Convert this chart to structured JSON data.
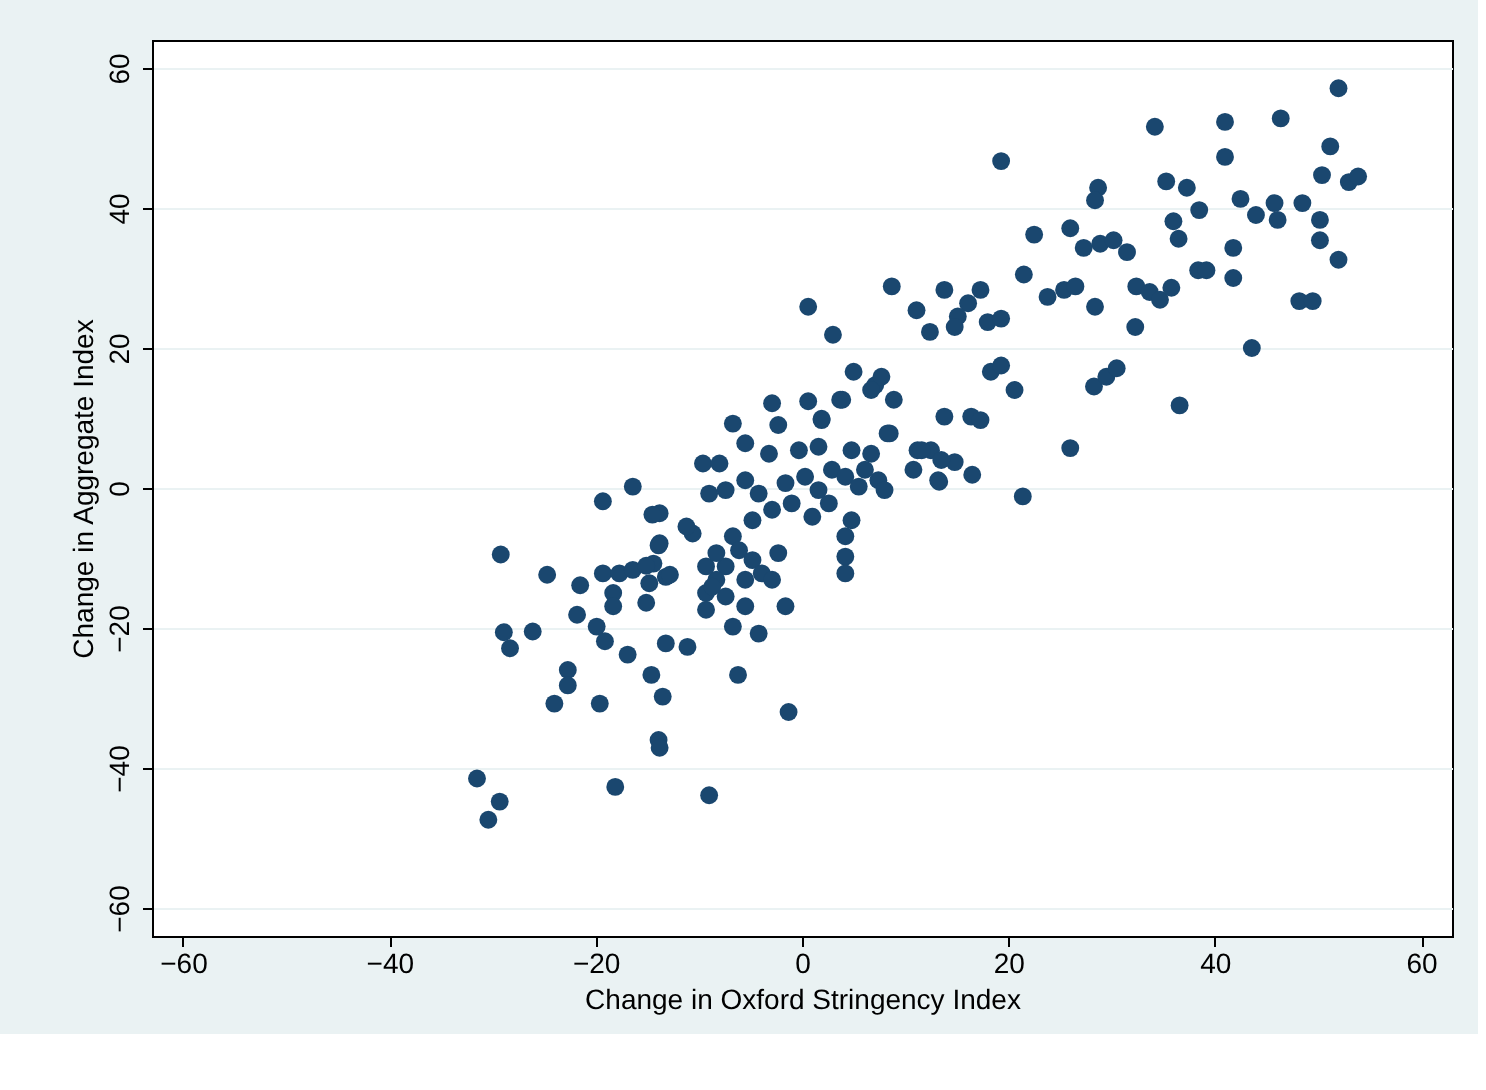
{
  "chart_data": {
    "type": "scatter",
    "xlabel": "Change in Oxford Stringency Index",
    "ylabel": "Change in Aggregate Index",
    "xlim": [
      -63,
      63
    ],
    "ylim": [
      -64,
      64
    ],
    "xticks": [
      -60,
      -40,
      -20,
      0,
      20,
      40,
      60
    ],
    "yticks": [
      -60,
      -40,
      -20,
      0,
      20,
      40,
      60
    ],
    "grid": "y",
    "marker": "circle",
    "series": [
      {
        "color": "#1a476f",
        "x": [
          52.0,
          34.2,
          41.0,
          46.4,
          41.0,
          19.3,
          51.2,
          50.4,
          53.0,
          53.9,
          35.3,
          37.3,
          38.5,
          28.7,
          28.4,
          42.5,
          44.0,
          45.8,
          46.1,
          48.5,
          50.2,
          50.2,
          52.0,
          36.0,
          36.5,
          41.8,
          41.8,
          38.4,
          39.2,
          48.2,
          49.5,
          43.6,
          36.6,
          22.5,
          26.0,
          27.3,
          28.9,
          30.2,
          31.5,
          21.5,
          23.8,
          25.4,
          26.5,
          28.4,
          32.4,
          33.7,
          34.7,
          35.8,
          32.3,
          8.7,
          13.8,
          17.3,
          16.1,
          15.1,
          14.8,
          11.1,
          12.4,
          18.0,
          19.3,
          0.6,
          3.0,
          18.3,
          19.3,
          20.6,
          28.3,
          29.5,
          30.5,
          5.0,
          7.1,
          7.7,
          8.9,
          0.6,
          3.7,
          1.9,
          13.8,
          16.4,
          17.3,
          8.5,
          26.0,
          11.2,
          12.5,
          10.8,
          14.8,
          13.3,
          16.5,
          21.4,
          6.7,
          -2.9,
          3.9,
          1.9,
          -2.3,
          -6.7,
          8.3,
          11.6,
          13.5,
          13.2,
          -5.5,
          -9.6,
          -8.0,
          -3.2,
          -0.3,
          1.6,
          4.8,
          6.7,
          -9.0,
          -7.4,
          -5.5,
          -4.2,
          -1.6,
          0.3,
          1.6,
          2.9,
          4.2,
          5.5,
          7.4,
          8.0,
          6.1,
          -2.9,
          -1.0,
          -4.8,
          4.8,
          4.2,
          4.2,
          4.2,
          2.6,
          1.0,
          -6.7,
          -6.1,
          -7.4,
          -4.8,
          -2.3,
          -8.3,
          -5.5,
          -3.9,
          -9.3,
          -7.4,
          -1.6,
          -10.6,
          -11.2,
          -13.8,
          -13.8,
          -13.2,
          -14.4,
          -16.4,
          -19.3,
          -14.5,
          -13.9,
          -29.2,
          -24.7,
          -21.5,
          -19.3,
          -17.7,
          -16.4,
          -15.1,
          -12.8,
          -18.3,
          -14.8,
          -15.1,
          -18.3,
          -21.8,
          -19.9,
          -28.9,
          -28.3,
          -26.1,
          -19.1,
          -16.9,
          -13.2,
          -11.1,
          -9.3,
          -6.7,
          -4.2,
          -22.7,
          -22.7,
          -24.0,
          -19.6,
          -14.6,
          -13.5,
          -6.2,
          -1.3,
          -13.9,
          -13.8,
          -31.5,
          -29.3,
          -30.4,
          -18.1,
          -9.0,
          -9.3,
          -8.3,
          -8.7,
          -5.5,
          -2.9
        ],
        "values": [
          57.1,
          51.6,
          52.3,
          52.8,
          47.3,
          46.7,
          48.8,
          44.7,
          43.7,
          44.5,
          43.8,
          42.9,
          39.7,
          42.9,
          41.1,
          41.3,
          39.0,
          40.7,
          38.3,
          40.7,
          38.3,
          35.4,
          32.6,
          38.1,
          35.6,
          34.3,
          30.0,
          31.1,
          31.1,
          26.7,
          26.7,
          20.0,
          11.8,
          36.2,
          37.1,
          34.3,
          34.9,
          35.4,
          33.7,
          30.5,
          27.3,
          28.3,
          28.8,
          25.9,
          28.8,
          28.0,
          26.9,
          28.6,
          23.0,
          28.8,
          28.3,
          28.3,
          26.4,
          24.5,
          23.0,
          25.4,
          22.3,
          23.7,
          24.2,
          25.9,
          21.9,
          16.6,
          17.5,
          14.0,
          14.5,
          15.9,
          17.1,
          16.6,
          14.7,
          15.9,
          12.6,
          12.4,
          12.6,
          9.7,
          10.2,
          10.2,
          9.7,
          7.8,
          5.7,
          5.4,
          5.4,
          2.6,
          3.7,
          0.9,
          1.9,
          -1.2,
          14.0,
          12.1,
          12.6,
          9.9,
          9.0,
          9.2,
          7.8,
          5.4,
          4.0,
          1.1,
          6.4,
          3.5,
          3.5,
          4.9,
          5.4,
          5.9,
          5.4,
          4.9,
          -0.8,
          -0.3,
          1.1,
          -0.8,
          0.7,
          1.6,
          -0.3,
          2.6,
          1.6,
          0.2,
          1.1,
          -0.3,
          2.6,
          -3.1,
          -2.2,
          -4.6,
          -4.6,
          -6.9,
          -9.8,
          -12.2,
          -2.2,
          -4.1,
          -6.9,
          -8.9,
          -11.2,
          -10.3,
          -9.3,
          -13.1,
          -13.1,
          -12.2,
          -15.0,
          -15.5,
          -16.9,
          -6.5,
          -5.5,
          -3.6,
          -7.9,
          -12.7,
          -10.8,
          0.2,
          -1.9,
          -3.8,
          -8.2,
          -9.5,
          -12.4,
          -13.9,
          -12.2,
          -12.2,
          -11.7,
          -11.1,
          -12.4,
          -15.0,
          -13.6,
          -16.4,
          -16.9,
          -18.1,
          -19.8,
          -20.6,
          -22.9,
          -20.5,
          -21.9,
          -23.8,
          -22.2,
          -22.7,
          -17.4,
          -19.8,
          -20.8,
          -26.0,
          -28.2,
          -30.8,
          -30.8,
          -26.7,
          -29.8,
          -26.7,
          -32.0,
          -36.0,
          -37.1,
          -41.5,
          -44.8,
          -47.4,
          -42.7,
          -43.9,
          -11.2,
          -9.3,
          -14.1,
          -16.9,
          -13.1
        ]
      }
    ]
  }
}
